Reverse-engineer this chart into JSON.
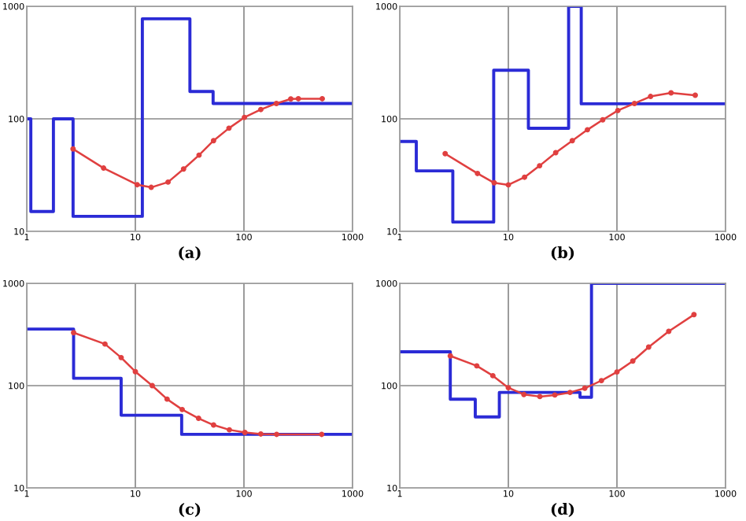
{
  "chart_data": [
    {
      "type": "line",
      "xlabel": "(a)",
      "log": "xy",
      "xlim": [
        1,
        1000
      ],
      "ylim": [
        10,
        1000
      ],
      "xticks": [
        1,
        10,
        100,
        1000
      ],
      "yticks": [
        10,
        100,
        1000
      ],
      "grid": true,
      "series": [
        {
          "type": "step",
          "color": "#2b2bd6",
          "marker": "none",
          "x": [
            1,
            1.09,
            1.76,
            2.67,
            11.6,
            31.8,
            52,
            1000
          ],
          "values": [
            100,
            15,
            100,
            13.6,
            775,
            175,
            137,
            137
          ]
        },
        {
          "color": "#e04040",
          "marker": "circle",
          "x": [
            2.67,
            5.1,
            10.4,
            14,
            20,
            27.8,
            38.6,
            52.5,
            72.8,
            101,
            143,
            199,
            270,
            317,
            526
          ],
          "values": [
            54,
            36.5,
            26,
            24.6,
            27.4,
            35.8,
            47.6,
            64,
            82.6,
            103,
            121,
            137,
            150,
            151,
            151
          ]
        }
      ]
    },
    {
      "type": "line",
      "xlabel": "(b)",
      "log": "xy",
      "xlim": [
        1,
        1000
      ],
      "ylim": [
        10,
        1000
      ],
      "xticks": [
        1,
        10,
        100,
        1000
      ],
      "yticks": [
        10,
        100,
        1000
      ],
      "grid": true,
      "series": [
        {
          "type": "step",
          "color": "#2b2bd6",
          "marker": "none",
          "x": [
            1,
            1.42,
            3.08,
            7.33,
            15.3,
            35.9,
            46.9,
            1000
          ],
          "values": [
            63,
            34.5,
            12.1,
            270,
            82.5,
            1000,
            136,
            136
          ]
        },
        {
          "color": "#e04040",
          "marker": "circle",
          "x": [
            2.62,
            5.2,
            7.4,
            10,
            14.1,
            19.4,
            27.3,
            38.8,
            53.5,
            74,
            102,
            145,
            204,
            315,
            526
          ],
          "values": [
            49,
            32.7,
            27,
            25.9,
            30.3,
            38.3,
            50,
            64,
            80,
            97.9,
            118.6,
            137,
            158,
            170,
            162
          ]
        }
      ]
    },
    {
      "type": "line",
      "xlabel": "(c)",
      "log": "xy",
      "xlim": [
        1,
        1000
      ],
      "ylim": [
        10,
        1000
      ],
      "xticks": [
        1,
        10,
        100,
        1000
      ],
      "yticks": [
        10,
        100,
        1000
      ],
      "grid": true,
      "series": [
        {
          "type": "step",
          "color": "#2b2bd6",
          "marker": "none",
          "x": [
            1,
            2.7,
            7.4,
            26.7,
            1000
          ],
          "values": [
            357,
            118,
            51.4,
            33.4,
            33.4
          ]
        },
        {
          "color": "#e04040",
          "marker": "circle",
          "x": [
            2.7,
            5.25,
            7.4,
            10,
            14.3,
            19.6,
            27,
            38.2,
            52.5,
            73.4,
            102,
            143,
            200,
            520
          ],
          "values": [
            329,
            255,
            188,
            137,
            100,
            73.8,
            58.4,
            47.9,
            41.2,
            37,
            34.9,
            33.7,
            33.4,
            33.4
          ]
        }
      ]
    },
    {
      "type": "line",
      "xlabel": "(d)",
      "log": "xy",
      "xlim": [
        1,
        1000
      ],
      "ylim": [
        10,
        1000
      ],
      "xticks": [
        1,
        10,
        100,
        1000
      ],
      "yticks": [
        10,
        100,
        1000
      ],
      "grid": true,
      "series": [
        {
          "type": "step",
          "color": "#2b2bd6",
          "marker": "none",
          "x": [
            1,
            2.92,
            4.96,
            8.26,
            45.7,
            58.3,
            1000
          ],
          "values": [
            214,
            73.7,
            49.4,
            85.8,
            77,
            1000,
            1000
          ]
        },
        {
          "color": "#e04040",
          "marker": "circle",
          "x": [
            2.92,
            5.12,
            7.2,
            10,
            13.9,
            19.5,
            26.8,
            37,
            50.6,
            72,
            100,
            140,
            196,
            300,
            512
          ],
          "values": [
            195,
            156,
            125,
            95.4,
            82,
            78.2,
            81,
            85.8,
            94.3,
            112,
            136,
            174,
            238,
            339,
            494
          ]
        }
      ]
    }
  ]
}
